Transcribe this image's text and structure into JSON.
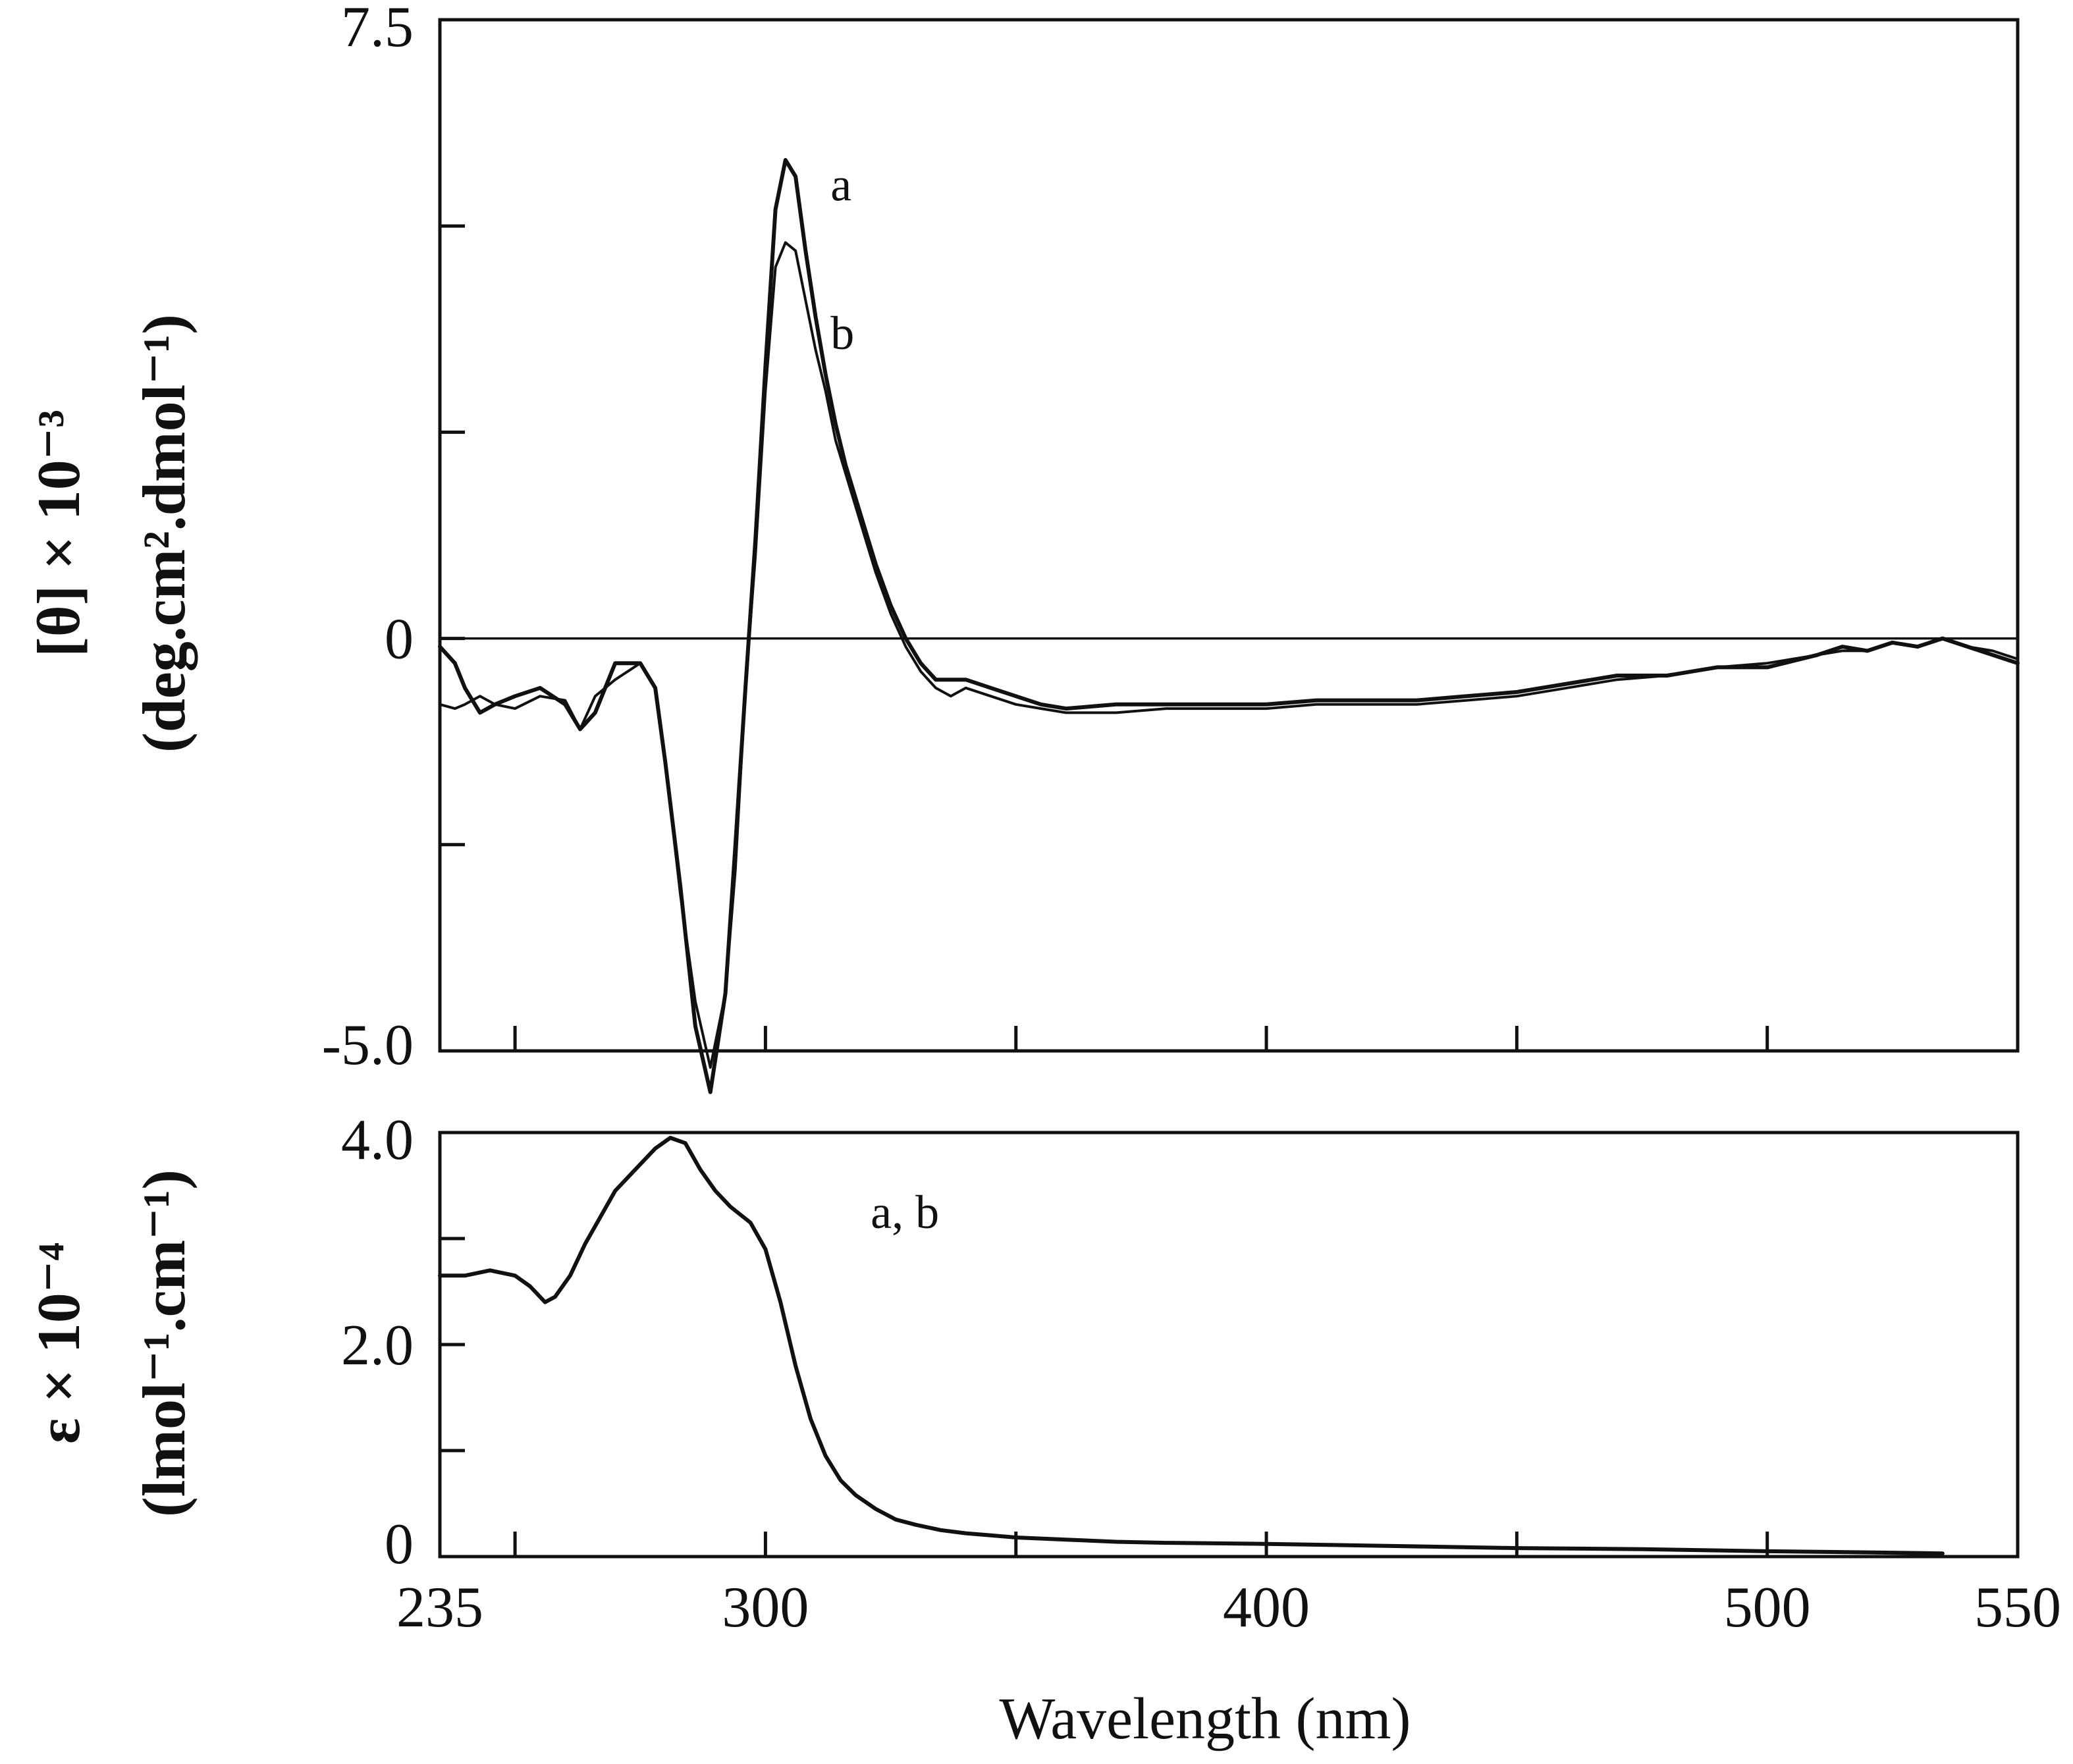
{
  "chart_data": [
    {
      "type": "line",
      "panel": "top",
      "title": "",
      "xlabel": "Wavelength (nm)",
      "ylabel_line1": "[θ] × 10⁻³",
      "ylabel_line2": "(deg.cm².dmol⁻¹)",
      "xlim": [
        235,
        550
      ],
      "ylim": [
        -5.0,
        7.5
      ],
      "x_ticks": [
        250,
        300,
        350,
        400,
        450,
        500
      ],
      "y_ticks": [
        -5.0,
        -2.5,
        0,
        2.5,
        5.0,
        7.5
      ],
      "y_tick_labels": [
        {
          "value": 7.5,
          "label": "7.5"
        },
        {
          "value": 0,
          "label": "0"
        },
        {
          "value": -5.0,
          "label": "-5.0"
        }
      ],
      "zero_line": true,
      "grid": false,
      "series": [
        {
          "name": "a",
          "x": [
            235,
            238,
            240,
            243,
            246,
            250,
            255,
            260,
            263,
            266,
            270,
            275,
            278,
            280,
            283,
            286,
            289,
            292,
            294,
            296,
            298,
            300,
            302,
            304,
            306,
            308,
            310,
            312,
            314,
            316,
            318,
            320,
            322,
            325,
            328,
            331,
            334,
            337,
            340,
            345,
            350,
            355,
            360,
            370,
            380,
            390,
            400,
            410,
            420,
            430,
            440,
            450,
            460,
            470,
            480,
            490,
            500,
            510,
            515,
            520,
            525,
            530,
            535,
            540,
            545,
            550
          ],
          "y": [
            -0.1,
            -0.3,
            -0.6,
            -0.9,
            -0.8,
            -0.7,
            -0.6,
            -0.8,
            -1.1,
            -0.9,
            -0.3,
            -0.3,
            -0.6,
            -1.5,
            -3.0,
            -4.7,
            -5.5,
            -4.3,
            -2.5,
            -0.6,
            1.2,
            3.3,
            5.2,
            5.8,
            5.6,
            4.7,
            3.9,
            3.2,
            2.6,
            2.1,
            1.7,
            1.3,
            0.9,
            0.4,
            0.0,
            -0.3,
            -0.5,
            -0.5,
            -0.5,
            -0.6,
            -0.7,
            -0.8,
            -0.85,
            -0.8,
            -0.8,
            -0.8,
            -0.8,
            -0.75,
            -0.75,
            -0.75,
            -0.7,
            -0.65,
            -0.55,
            -0.45,
            -0.45,
            -0.35,
            -0.35,
            -0.2,
            -0.1,
            -0.15,
            -0.05,
            -0.1,
            0.0,
            -0.1,
            -0.2,
            -0.3
          ]
        },
        {
          "name": "b",
          "x": [
            235,
            238,
            240,
            243,
            246,
            250,
            255,
            260,
            263,
            266,
            270,
            275,
            278,
            280,
            283,
            286,
            289,
            292,
            294,
            296,
            298,
            300,
            302,
            304,
            306,
            308,
            310,
            312,
            314,
            316,
            318,
            320,
            322,
            325,
            328,
            331,
            334,
            337,
            340,
            345,
            350,
            355,
            360,
            370,
            380,
            390,
            400,
            410,
            420,
            430,
            440,
            450,
            460,
            470,
            480,
            490,
            500,
            510,
            515,
            520,
            525,
            530,
            535,
            540,
            545,
            550
          ],
          "y": [
            -0.8,
            -0.85,
            -0.8,
            -0.7,
            -0.8,
            -0.85,
            -0.7,
            -0.75,
            -1.1,
            -0.7,
            -0.5,
            -0.3,
            -0.6,
            -1.5,
            -3.1,
            -4.4,
            -5.2,
            -4.3,
            -2.8,
            -0.6,
            1.0,
            3.0,
            4.5,
            4.8,
            4.7,
            4.1,
            3.5,
            3.0,
            2.4,
            2.0,
            1.6,
            1.2,
            0.8,
            0.3,
            -0.1,
            -0.4,
            -0.6,
            -0.7,
            -0.6,
            -0.7,
            -0.8,
            -0.85,
            -0.9,
            -0.9,
            -0.85,
            -0.85,
            -0.85,
            -0.8,
            -0.8,
            -0.8,
            -0.75,
            -0.7,
            -0.6,
            -0.5,
            -0.45,
            -0.35,
            -0.3,
            -0.2,
            -0.15,
            -0.15,
            -0.05,
            -0.1,
            0.0,
            -0.1,
            -0.15,
            -0.25
          ]
        }
      ],
      "annotations": [
        {
          "text": "a",
          "x": 313,
          "y": 5.5
        },
        {
          "text": "b",
          "x": 313,
          "y": 3.7
        }
      ]
    },
    {
      "type": "line",
      "panel": "bottom",
      "title": "",
      "xlabel": "Wavelength (nm)",
      "ylabel_line1": "ε × 10⁻⁴",
      "ylabel_line2": "(lmol⁻¹.cm⁻¹)",
      "xlim": [
        235,
        550
      ],
      "ylim": [
        0,
        4.0
      ],
      "x_ticks": [
        235,
        250,
        300,
        350,
        400,
        450,
        500,
        550
      ],
      "x_tick_labels": [
        {
          "value": 235,
          "label": "235"
        },
        {
          "value": 300,
          "label": "300"
        },
        {
          "value": 400,
          "label": "400"
        },
        {
          "value": 500,
          "label": "500"
        },
        {
          "value": 550,
          "label": "550"
        }
      ],
      "y_ticks": [
        0,
        1.0,
        2.0,
        3.0,
        4.0
      ],
      "y_tick_labels": [
        {
          "value": 4.0,
          "label": "4.0"
        },
        {
          "value": 2.0,
          "label": "2.0"
        },
        {
          "value": 0,
          "label": "0"
        }
      ],
      "grid": false,
      "series": [
        {
          "name": "a, b",
          "x": [
            235,
            240,
            245,
            250,
            253,
            256,
            258,
            261,
            264,
            267,
            270,
            274,
            278,
            281,
            284,
            287,
            290,
            293,
            297,
            300,
            303,
            306,
            309,
            312,
            315,
            318,
            322,
            326,
            330,
            335,
            340,
            345,
            350,
            360,
            370,
            380,
            400,
            425,
            450,
            475,
            500,
            520,
            535
          ],
          "y": [
            2.65,
            2.65,
            2.7,
            2.65,
            2.55,
            2.4,
            2.45,
            2.65,
            2.95,
            3.2,
            3.45,
            3.65,
            3.85,
            3.95,
            3.9,
            3.65,
            3.45,
            3.3,
            3.15,
            2.9,
            2.4,
            1.8,
            1.3,
            0.95,
            0.72,
            0.58,
            0.45,
            0.35,
            0.3,
            0.25,
            0.22,
            0.2,
            0.18,
            0.16,
            0.14,
            0.13,
            0.12,
            0.1,
            0.08,
            0.07,
            0.05,
            0.04,
            0.03
          ]
        }
      ],
      "annotations": [
        {
          "text": "a, b",
          "x": 321,
          "y": 3.25
        }
      ]
    }
  ]
}
